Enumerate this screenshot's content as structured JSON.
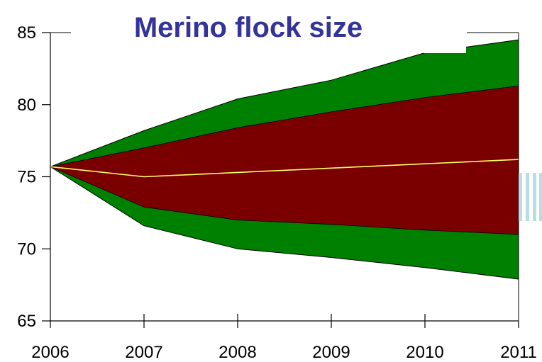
{
  "chart_data": {
    "type": "area",
    "title": "Merino flock size",
    "xlabel": "",
    "ylabel": "",
    "x": [
      "2006",
      "2007",
      "2008",
      "2009",
      "2010",
      "2011"
    ],
    "xlim": [
      2006,
      2011
    ],
    "ylim": [
      65,
      85
    ],
    "yticks": [
      "65",
      "70",
      "75",
      "80",
      "85"
    ],
    "grid": false,
    "series": [
      {
        "role": "outer-band-upper",
        "values": [
          75.7,
          78.2,
          80.4,
          81.7,
          83.6,
          84.5
        ]
      },
      {
        "role": "outer-band-lower",
        "values": [
          75.7,
          71.6,
          70.0,
          69.4,
          68.7,
          67.9
        ]
      },
      {
        "role": "inner-band-upper",
        "values": [
          75.7,
          77.0,
          78.4,
          79.5,
          80.5,
          81.3
        ]
      },
      {
        "role": "inner-band-lower",
        "values": [
          75.7,
          72.9,
          72.0,
          71.7,
          71.3,
          71.0
        ]
      },
      {
        "role": "median",
        "values": [
          75.7,
          75.0,
          75.3,
          75.6,
          75.9,
          76.2
        ]
      }
    ],
    "colors": {
      "outer_band": "#008000",
      "inner_band": "#7a0000",
      "median_line": "#ffff66",
      "title": "#333399",
      "axis": "#000000",
      "artifact_block": "#ffffff",
      "artifact_bars": "#b8dde2"
    }
  }
}
